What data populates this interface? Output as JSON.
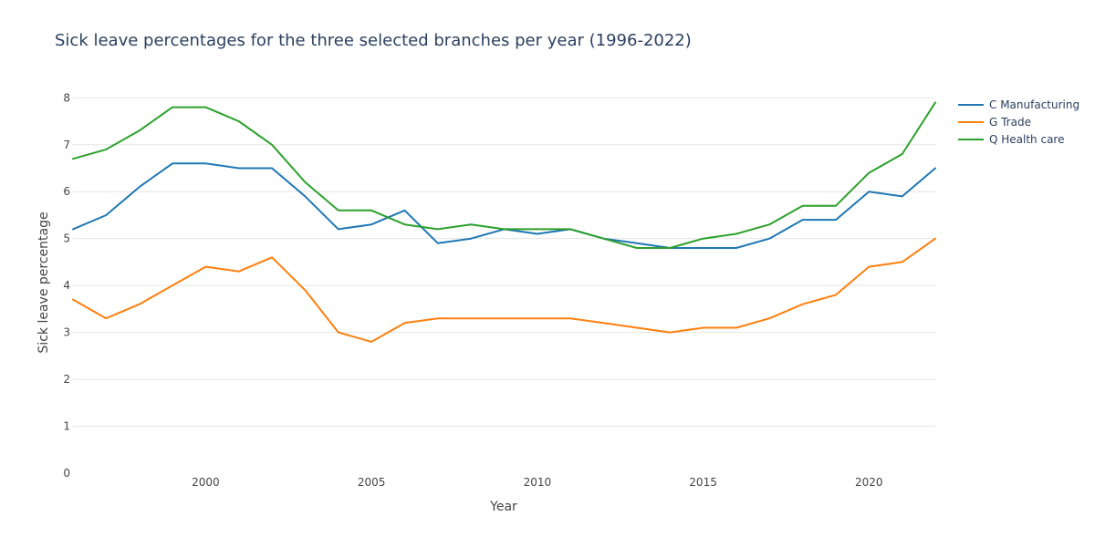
{
  "chart_data": {
    "type": "line",
    "title": "Sick leave percentages for the three selected branches per year (1996-2022)",
    "xlabel": "Year",
    "ylabel": "Sick leave percentage",
    "xlim": [
      1996,
      2022
    ],
    "ylim": [
      0,
      8.2
    ],
    "x_ticks": [
      2000,
      2005,
      2010,
      2015,
      2020
    ],
    "y_ticks": [
      0,
      1,
      2,
      3,
      4,
      5,
      6,
      7,
      8
    ],
    "grid": "horizontal",
    "legend_position": "top-right",
    "x": [
      1996,
      1997,
      1998,
      1999,
      2000,
      2001,
      2002,
      2003,
      2004,
      2005,
      2006,
      2007,
      2008,
      2009,
      2010,
      2011,
      2012,
      2013,
      2014,
      2015,
      2016,
      2017,
      2018,
      2019,
      2020,
      2021,
      2022
    ],
    "series": [
      {
        "name": "C Manufacturing",
        "color": "#1f77b4",
        "values": [
          5.2,
          5.5,
          6.1,
          6.6,
          6.6,
          6.5,
          6.5,
          5.9,
          5.2,
          5.3,
          5.6,
          4.9,
          5.0,
          5.2,
          5.1,
          5.2,
          5.0,
          4.9,
          4.8,
          4.8,
          4.8,
          5.0,
          5.4,
          5.4,
          6.0,
          5.9,
          6.5
        ]
      },
      {
        "name": "G Trade",
        "color": "#ff7f0e",
        "values": [
          3.7,
          3.3,
          3.6,
          4.0,
          4.4,
          4.3,
          4.6,
          3.9,
          3.0,
          2.8,
          3.2,
          3.3,
          3.3,
          3.3,
          3.3,
          3.3,
          3.2,
          3.1,
          3.0,
          3.1,
          3.1,
          3.3,
          3.6,
          3.8,
          4.4,
          4.5,
          5.0
        ]
      },
      {
        "name": "Q Health care",
        "color": "#2ca02c",
        "values": [
          6.7,
          6.9,
          7.3,
          7.8,
          7.8,
          7.5,
          7.0,
          6.2,
          5.6,
          5.6,
          5.3,
          5.2,
          5.3,
          5.2,
          5.2,
          5.2,
          5.0,
          4.8,
          4.8,
          5.0,
          5.1,
          5.3,
          5.7,
          5.7,
          6.4,
          6.8,
          7.9
        ]
      }
    ]
  }
}
